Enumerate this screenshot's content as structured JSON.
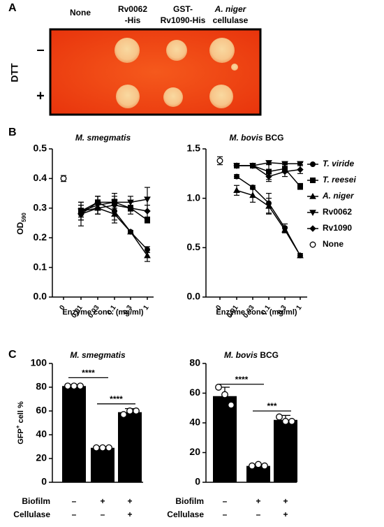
{
  "panel_labels": [
    "A",
    "B",
    "C"
  ],
  "panel_a": {
    "columns": [
      [
        "None"
      ],
      [
        "Rv0062",
        "-His"
      ],
      [
        "GST-",
        "Rv1090-His"
      ],
      [
        "A. niger",
        "cellulase"
      ]
    ],
    "row_title": "DTT",
    "rows": [
      "–",
      "+"
    ]
  },
  "chart_data": [
    {
      "type": "line",
      "title": "M. smegmatis",
      "x_label": "Enzyme conc. (mg/ml)",
      "y_label": "OD",
      "y_label_sub": "590",
      "categories": [
        "0",
        "0.01",
        "0.03",
        "0.1",
        "0.3",
        "1"
      ],
      "ylim": [
        0,
        0.5
      ],
      "yticks": [
        {
          "value": 0,
          "label": "0.0"
        },
        0.1,
        0.2,
        0.3,
        0.4,
        0.5
      ],
      "series": [
        {
          "name": "T. viride",
          "marker": "circle",
          "color": "#000",
          "values": [
            null,
            0.28,
            0.32,
            0.29,
            0.22,
            0.16
          ],
          "errors": [
            null,
            0.04,
            0.02,
            0.03,
            0.005,
            0.01
          ]
        },
        {
          "name": "T. reesei",
          "marker": "square",
          "color": "#000",
          "values": [
            null,
            0.29,
            0.32,
            0.32,
            0.3,
            0.26
          ],
          "errors": [
            null,
            0.02,
            0.02,
            0.02,
            0.01,
            0.01
          ]
        },
        {
          "name": "A. niger",
          "marker": "triangle-up",
          "color": "#000",
          "values": [
            null,
            0.29,
            0.3,
            0.28,
            0.22,
            0.14
          ],
          "errors": [
            null,
            0.02,
            0.02,
            0.03,
            0.005,
            0.02
          ]
        },
        {
          "name": "Rv0062",
          "marker": "triangle-down",
          "color": "#000",
          "values": [
            null,
            0.29,
            0.31,
            0.32,
            0.32,
            0.33
          ],
          "errors": [
            null,
            0.03,
            0.03,
            0.03,
            0.02,
            0.04
          ]
        },
        {
          "name": "Rv1090",
          "marker": "diamond",
          "color": "#000",
          "values": [
            null,
            0.28,
            0.3,
            0.31,
            0.3,
            0.29
          ],
          "errors": [
            null,
            0.02,
            0.02,
            0.02,
            0.02,
            0.02
          ]
        },
        {
          "name": "None",
          "marker": "open-circle",
          "color": "#000",
          "values": [
            0.4,
            null,
            null,
            null,
            null,
            null
          ],
          "errors": [
            0.01,
            null,
            null,
            null,
            null,
            null
          ]
        }
      ]
    },
    {
      "type": "line",
      "title": "M. bovis",
      "title_suffix": "BCG",
      "x_label": "Enzyme conc. (mg/ml)",
      "categories": [
        "0",
        "0.01",
        "0.03",
        "0.1",
        "0.3",
        "1"
      ],
      "ylim": [
        0,
        1.5
      ],
      "yticks": [
        {
          "value": 0,
          "label": "0.0"
        },
        0.5,
        {
          "value": 1,
          "label": "1.0"
        },
        1.5
      ],
      "series": [
        {
          "name": "T. viride",
          "marker": "circle",
          "color": "#000",
          "values": [
            null,
            1.22,
            1.11,
            0.95,
            0.7,
            0.42
          ],
          "errors": [
            null,
            0.02,
            0.02,
            0.1,
            0.04,
            0.02
          ]
        },
        {
          "name": "T. reesei",
          "marker": "square",
          "color": "#000",
          "values": [
            null,
            1.33,
            1.33,
            1.27,
            1.3,
            1.12
          ],
          "errors": [
            null,
            0.01,
            0.01,
            0.08,
            0.04,
            0.03
          ]
        },
        {
          "name": "A. niger",
          "marker": "triangle-up",
          "color": "#000",
          "values": [
            null,
            1.08,
            1.03,
            0.92,
            0.68,
            0.42
          ],
          "errors": [
            null,
            0.05,
            0.07,
            0.08,
            0.03,
            0.02
          ]
        },
        {
          "name": "Rv0062",
          "marker": "triangle-down",
          "color": "#000",
          "values": [
            null,
            1.33,
            1.33,
            1.36,
            1.35,
            1.35
          ],
          "errors": [
            null,
            0.01,
            0.01,
            0.02,
            0.01,
            0.01
          ]
        },
        {
          "name": "Rv1090",
          "marker": "diamond",
          "color": "#000",
          "values": [
            null,
            1.33,
            1.33,
            1.22,
            1.27,
            1.29
          ],
          "errors": [
            null,
            0.01,
            0.01,
            0.05,
            0.05,
            0.04
          ]
        },
        {
          "name": "None",
          "marker": "open-circle",
          "color": "#000",
          "values": [
            1.38,
            null,
            null,
            null,
            null,
            null
          ],
          "errors": [
            0.04,
            null,
            null,
            null,
            null,
            null
          ]
        }
      ]
    },
    {
      "type": "bar",
      "title": "M. smegmatis",
      "y_label": "GFP",
      "y_label_sup": "+",
      "y_label_suffix": " cell %",
      "categories": [
        null,
        null,
        null
      ],
      "values": [
        81,
        29,
        59
      ],
      "errors": [
        1,
        1,
        3
      ],
      "color": "#000",
      "points": [
        [
          81,
          81,
          81
        ],
        [
          29,
          29,
          29
        ],
        [
          57,
          60,
          60
        ]
      ],
      "ylim": [
        0,
        100
      ],
      "yticks": [
        0,
        20,
        40,
        60,
        80,
        100
      ],
      "conditions": [
        {
          "name": "Biofilm",
          "values": [
            "–",
            "+",
            "+"
          ]
        },
        {
          "name": "Cellulase",
          "values": [
            "–",
            "–",
            "+"
          ]
        }
      ],
      "annotations": [
        {
          "text": "****",
          "from": 0,
          "to": 1
        },
        {
          "text": "****",
          "from": 1,
          "to": 2
        }
      ]
    },
    {
      "type": "bar",
      "title": "M. bovis",
      "title_suffix": "BCG",
      "categories": [
        null,
        null,
        null
      ],
      "values": [
        58,
        11,
        42
      ],
      "errors": [
        6,
        1,
        3
      ],
      "color": "#000",
      "points": [
        [
          64,
          59,
          52
        ],
        [
          11,
          12,
          11
        ],
        [
          44,
          41,
          41
        ]
      ],
      "ylim": [
        0,
        80
      ],
      "yticks": [
        0,
        20,
        40,
        60,
        80
      ],
      "conditions": [
        {
          "name": "Biofilm",
          "values": [
            "–",
            "+",
            "+"
          ]
        },
        {
          "name": "Cellulase",
          "values": [
            "–",
            "–",
            "+"
          ]
        }
      ],
      "annotations": [
        {
          "text": "****",
          "from": 0,
          "to": 1
        },
        {
          "text": "***",
          "from": 1,
          "to": 2
        }
      ]
    }
  ]
}
